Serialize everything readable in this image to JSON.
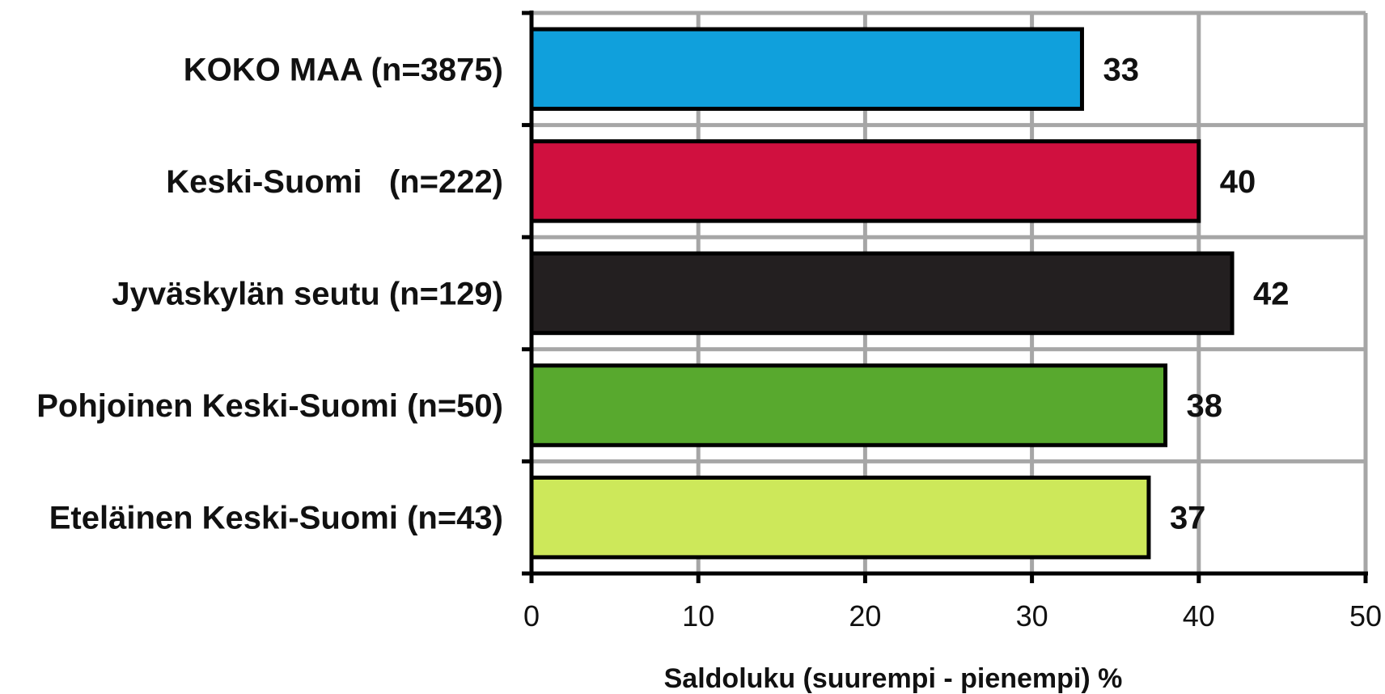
{
  "chart_data": {
    "type": "bar",
    "orientation": "horizontal",
    "categories": [
      "KOKO MAA (n=3875)",
      "Keski-Suomi   (n=222)",
      "Jyväskylän seutu (n=129)",
      "Pohjoinen Keski-Suomi (n=50)",
      "Eteläinen Keski-Suomi (n=43)"
    ],
    "values": [
      33,
      40,
      42,
      38,
      37
    ],
    "bar_colors": [
      "#10a0dc",
      "#d0103f",
      "#231f20",
      "#58a92e",
      "#cde85a"
    ],
    "xlabel": "Saldoluku (suurempi - pienempi) %",
    "xlim": [
      0,
      50
    ],
    "xticks": [
      "0",
      "10",
      "20",
      "30",
      "40",
      "50"
    ],
    "grid": true,
    "gridline_color": "#a6a6a6",
    "data_labels": [
      "33",
      "40",
      "42",
      "38",
      "37"
    ]
  }
}
